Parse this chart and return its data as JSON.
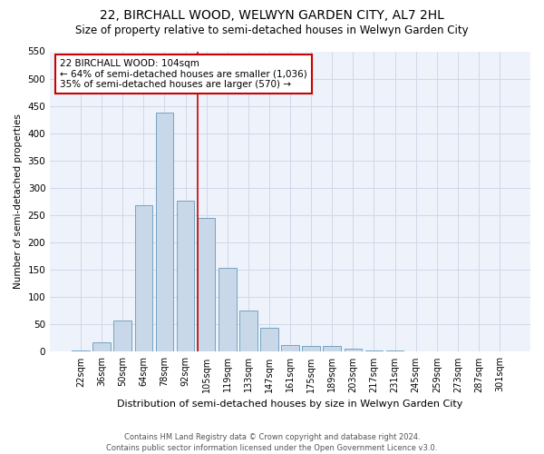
{
  "title1": "22, BIRCHALL WOOD, WELWYN GARDEN CITY, AL7 2HL",
  "title2": "Size of property relative to semi-detached houses in Welwyn Garden City",
  "xlabel": "Distribution of semi-detached houses by size in Welwyn Garden City",
  "ylabel": "Number of semi-detached properties",
  "footnote": "Contains HM Land Registry data © Crown copyright and database right 2024.\nContains public sector information licensed under the Open Government Licence v3.0.",
  "bins": [
    "22sqm",
    "36sqm",
    "50sqm",
    "64sqm",
    "78sqm",
    "92sqm",
    "105sqm",
    "119sqm",
    "133sqm",
    "147sqm",
    "161sqm",
    "175sqm",
    "189sqm",
    "203sqm",
    "217sqm",
    "231sqm",
    "245sqm",
    "259sqm",
    "273sqm",
    "287sqm",
    "301sqm"
  ],
  "values": [
    3,
    17,
    57,
    268,
    438,
    277,
    245,
    153,
    75,
    44,
    13,
    10,
    10,
    5,
    3,
    2,
    1,
    0,
    0,
    0,
    1
  ],
  "bar_color": "#c8d8e8",
  "bar_edge_color": "#6699bb",
  "annotation_text": "22 BIRCHALL WOOD: 104sqm\n← 64% of semi-detached houses are smaller (1,036)\n35% of semi-detached houses are larger (570) →",
  "annotation_box_color": "#ffffff",
  "annotation_box_edge_color": "#cc0000",
  "vline_color": "#cc0000",
  "ylim": [
    0,
    550
  ],
  "yticks": [
    0,
    50,
    100,
    150,
    200,
    250,
    300,
    350,
    400,
    450,
    500,
    550
  ],
  "grid_color": "#d0d8e8",
  "background_color": "#eef2fa",
  "title1_fontsize": 10,
  "title2_fontsize": 8.5,
  "annotation_fontsize": 7.5,
  "xlabel_fontsize": 8,
  "ylabel_fontsize": 7.5,
  "tick_fontsize": 7,
  "ytick_fontsize": 7.5,
  "footnote_fontsize": 6
}
